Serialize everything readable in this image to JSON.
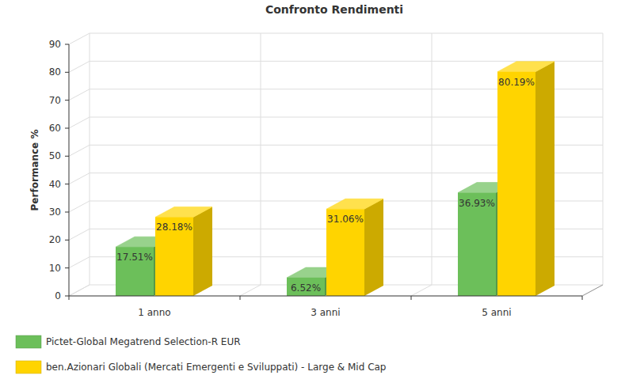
{
  "chart_data": {
    "type": "bar",
    "title": "Confronto Rendimenti",
    "y_label": "Performance %",
    "categories": [
      "1 anno",
      "3 anni",
      "5 anni"
    ],
    "series": [
      {
        "name": "Pictet-Global Megatrend Selection-R EUR",
        "color": "#6cbf5a",
        "values": [
          17.51,
          6.52,
          36.93
        ],
        "value_labels": [
          "17.51%",
          "6.52%",
          "36.93%"
        ]
      },
      {
        "name": "ben.Azionari Globali (Mercati Emergenti e Sviluppati) - Large & Mid Cap",
        "color": "#ffd400",
        "values": [
          28.18,
          31.06,
          80.19
        ],
        "value_labels": [
          "28.18%",
          "31.06%",
          "80.19%"
        ]
      }
    ],
    "ylim": [
      0,
      90
    ],
    "yticks": [
      0,
      10,
      20,
      30,
      40,
      50,
      60,
      70,
      80,
      90
    ],
    "grid": true,
    "legend": "bottom-left",
    "data_labels": true
  }
}
